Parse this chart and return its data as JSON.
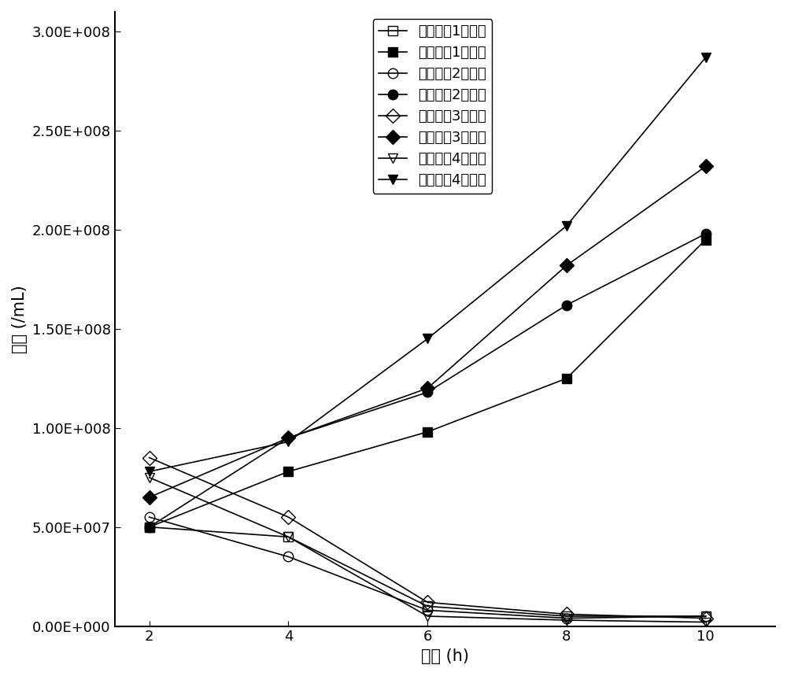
{
  "x": [
    2,
    4,
    6,
    8,
    10
  ],
  "series": [
    {
      "label": "实施案例1处理前",
      "values": [
        50000000.0,
        45000000.0,
        10000000.0,
        5000000.0,
        5000000.0
      ],
      "marker": "s",
      "fillstyle": "none",
      "color": "black"
    },
    {
      "label": "实施案例1处理后",
      "values": [
        50000000.0,
        78000000.0,
        98000000.0,
        125000000.0,
        195000000.0
      ],
      "marker": "s",
      "fillstyle": "full",
      "color": "black"
    },
    {
      "label": "实施案例2处理前",
      "values": [
        55000000.0,
        35000000.0,
        8000000.0,
        4000000.0,
        5000000.0
      ],
      "marker": "o",
      "fillstyle": "none",
      "color": "black"
    },
    {
      "label": "实施案例2处理后",
      "values": [
        50000000.0,
        95000000.0,
        118000000.0,
        162000000.0,
        198000000.0
      ],
      "marker": "o",
      "fillstyle": "full",
      "color": "black"
    },
    {
      "label": "实施案例3处理前",
      "values": [
        85000000.0,
        55000000.0,
        12000000.0,
        6000000.0,
        4000000.0
      ],
      "marker": "D",
      "fillstyle": "none",
      "color": "black"
    },
    {
      "label": "实施案例3处理后",
      "values": [
        65000000.0,
        95000000.0,
        120000000.0,
        182000000.0,
        232000000.0
      ],
      "marker": "D",
      "fillstyle": "full",
      "color": "black"
    },
    {
      "label": "实施案例4处理前",
      "values": [
        75000000.0,
        45000000.0,
        5000000.0,
        3000000.0,
        2000000.0
      ],
      "marker": "v",
      "fillstyle": "none",
      "color": "black"
    },
    {
      "label": "实施案例4处理后",
      "values": [
        78000000.0,
        93000000.0,
        145000000.0,
        202000000.0,
        287000000.0
      ],
      "marker": "v",
      "fillstyle": "full",
      "color": "black"
    }
  ],
  "xlabel": "时间 (h)",
  "ylabel": "菌浓 (/mL)",
  "ylim": [
    0,
    310000000.0
  ],
  "yticks": [
    0,
    50000000.0,
    100000000.0,
    150000000.0,
    200000000.0,
    250000000.0,
    300000000.0
  ],
  "ytick_labels": [
    "0.00E+000",
    "5.00E+007",
    "1.00E+008",
    "1.50E+008",
    "2.00E+008",
    "2.50E+008",
    "3.00E+008"
  ],
  "xticks": [
    2,
    4,
    6,
    8,
    10
  ],
  "background_color": "#ffffff",
  "font_size": 15,
  "legend_fontsize": 13,
  "tick_fontsize": 13
}
